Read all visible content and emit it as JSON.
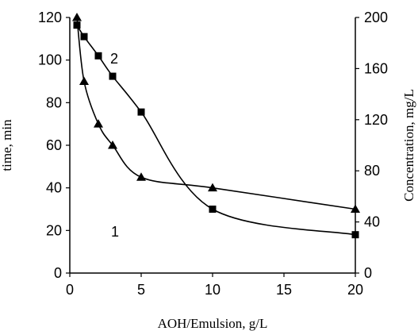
{
  "chart_data": {
    "type": "line",
    "xlabel": "AOH/Emulsion, g/L",
    "ylabel_left": "time, min",
    "ylabel_right": "Concentration, mg/L",
    "xlim": [
      0,
      20
    ],
    "ylim_left": [
      0,
      120
    ],
    "ylim_right": [
      0,
      200
    ],
    "xticks": [
      "0",
      "5",
      "10",
      "15",
      "20"
    ],
    "yticks_left": [
      "0",
      "20",
      "40",
      "60",
      "80",
      "100",
      "120"
    ],
    "yticks_right": [
      "0",
      "40",
      "80",
      "120",
      "160",
      "200"
    ],
    "grid": false,
    "series": [
      {
        "label": "1",
        "axis": "left",
        "marker": "triangle",
        "x": [
          0.5,
          1,
          2,
          3,
          5,
          10,
          20
        ],
        "y": [
          120,
          90,
          70,
          60,
          45,
          40,
          30
        ]
      },
      {
        "label": "2",
        "axis": "right",
        "marker": "square",
        "x": [
          0.5,
          1,
          2,
          3,
          5,
          10,
          20
        ],
        "y": [
          194,
          185,
          170,
          154,
          126,
          50,
          30
        ]
      }
    ]
  }
}
